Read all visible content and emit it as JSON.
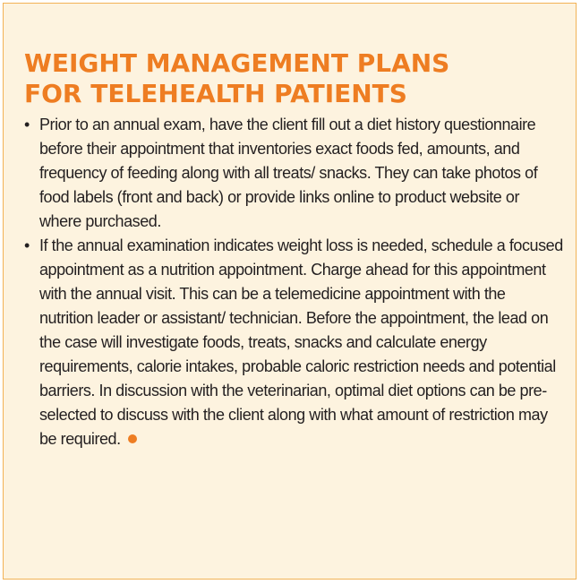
{
  "sidebar": {
    "title_lines": [
      "WEIGHT MANAGEMENT PLANS",
      "FOR TELEHEALTH PATIENTS"
    ],
    "bullet_glyph": "•",
    "bullets": [
      "Prior to an annual exam, have the client fill out a diet history questionnaire before their appointment that inventories exact foods fed, amounts, and frequency of feeding along with all treats/ snacks. They can take photos of food labels (front and back) or provide links online to product website or where purchased.",
      "If the annual examination indicates weight loss is needed, schedule a focused appointment as a nutrition appointment. Charge ahead for this appointment with the annual visit. This can be a telemedicine appointment with the nutrition leader or assistant/ technician. Before the appointment, the lead on the case will investigate foods, treats, snacks and calculate energy requirements, calorie intakes, probable caloric restriction needs and potential barriers. In discussion with the veterinarian, optimal diet options can be pre-selected to discuss with the client along with what amount of restriction may be required."
    ],
    "colors": {
      "accent": "#ee7d22",
      "background": "#fdf3df",
      "border": "#f2b255",
      "text": "#231f20"
    }
  }
}
